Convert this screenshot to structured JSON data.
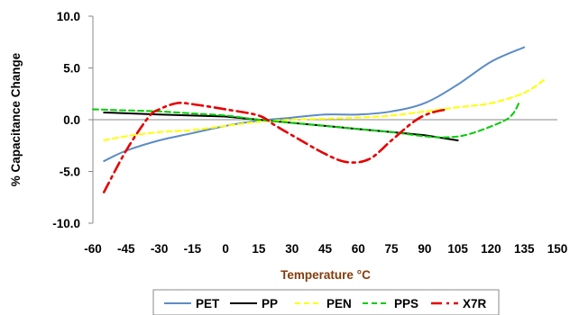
{
  "chart_data": {
    "type": "line",
    "title": "",
    "xlabel": "Temperature °C",
    "ylabel": "% Capacitance Change",
    "xlim": [
      -60,
      150
    ],
    "ylim": [
      -10,
      10
    ],
    "x_ticks": [
      -60,
      -45,
      -30,
      -15,
      0,
      15,
      30,
      45,
      60,
      75,
      90,
      105,
      120,
      135,
      150
    ],
    "y_ticks": [
      {
        "value": 10,
        "label": "10.0"
      },
      {
        "value": 5,
        "label": "5.0"
      },
      {
        "value": 0,
        "label": "0.0"
      },
      {
        "value": -5,
        "label": "-5.0"
      },
      {
        "value": -10,
        "label": "-10.0"
      }
    ],
    "grid": false,
    "legend_position": "bottom",
    "series": [
      {
        "name": "PET",
        "color": "#5B8BC7",
        "dash": "solid",
        "points": [
          [
            -55,
            -4.0
          ],
          [
            -45,
            -3.0
          ],
          [
            -30,
            -2.0
          ],
          [
            -15,
            -1.3
          ],
          [
            0,
            -0.6
          ],
          [
            15,
            -0.1
          ],
          [
            30,
            0.2
          ],
          [
            45,
            0.5
          ],
          [
            60,
            0.5
          ],
          [
            75,
            0.8
          ],
          [
            90,
            1.6
          ],
          [
            105,
            3.4
          ],
          [
            120,
            5.6
          ],
          [
            135,
            7.0
          ]
        ]
      },
      {
        "name": "PP",
        "color": "#000000",
        "dash": "solid",
        "points": [
          [
            -55,
            0.7
          ],
          [
            -30,
            0.5
          ],
          [
            0,
            0.3
          ],
          [
            15,
            0.0
          ],
          [
            30,
            -0.3
          ],
          [
            45,
            -0.6
          ],
          [
            60,
            -0.9
          ],
          [
            75,
            -1.2
          ],
          [
            90,
            -1.5
          ],
          [
            105,
            -2.0
          ]
        ]
      },
      {
        "name": "PEN",
        "color": "#FFFF00",
        "dash": "dashed",
        "points": [
          [
            -55,
            -2.0
          ],
          [
            -45,
            -1.6
          ],
          [
            -30,
            -1.2
          ],
          [
            -15,
            -1.0
          ],
          [
            0,
            -0.6
          ],
          [
            15,
            -0.2
          ],
          [
            30,
            0.0
          ],
          [
            45,
            0.1
          ],
          [
            60,
            0.2
          ],
          [
            75,
            0.4
          ],
          [
            90,
            0.8
          ],
          [
            105,
            1.2
          ],
          [
            120,
            1.6
          ],
          [
            135,
            2.6
          ],
          [
            145,
            4.0
          ]
        ]
      },
      {
        "name": "PPS",
        "color": "#00CC00",
        "dash": "dashed",
        "points": [
          [
            -60,
            1.0
          ],
          [
            -45,
            0.9
          ],
          [
            -30,
            0.8
          ],
          [
            -15,
            0.6
          ],
          [
            0,
            0.4
          ],
          [
            15,
            0.0
          ],
          [
            30,
            -0.3
          ],
          [
            45,
            -0.6
          ],
          [
            60,
            -0.9
          ],
          [
            75,
            -1.2
          ],
          [
            90,
            -1.6
          ],
          [
            100,
            -1.7
          ],
          [
            110,
            -1.4
          ],
          [
            125,
            -0.2
          ],
          [
            130,
            0.6
          ],
          [
            133,
            1.8
          ]
        ]
      },
      {
        "name": "X7R",
        "color": "#E60000",
        "dash": "dashdot",
        "points": [
          [
            -55,
            -7.0
          ],
          [
            -45,
            -3.0
          ],
          [
            -35,
            0.2
          ],
          [
            -30,
            1.0
          ],
          [
            -22,
            1.6
          ],
          [
            -15,
            1.5
          ],
          [
            0,
            1.0
          ],
          [
            15,
            0.4
          ],
          [
            22,
            -0.5
          ],
          [
            30,
            -1.5
          ],
          [
            45,
            -3.3
          ],
          [
            55,
            -4.1
          ],
          [
            65,
            -3.8
          ],
          [
            75,
            -2.0
          ],
          [
            85,
            -0.2
          ],
          [
            92,
            0.6
          ],
          [
            100,
            1.0
          ]
        ]
      }
    ]
  }
}
